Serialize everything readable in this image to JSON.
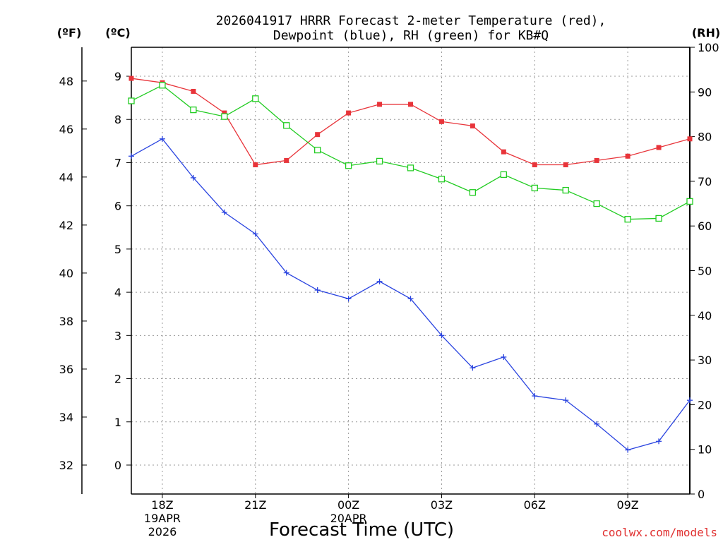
{
  "chart_data": {
    "type": "line",
    "title_line1": "2026041917 HRRR Forecast 2-meter Temperature (red),",
    "title_line2": "Dewpoint (blue), RH (green) for KB#Q",
    "xlabel": "Forecast Time (UTC)",
    "watermark": "coolwx.com/models",
    "units": {
      "fahrenheit": "(ºF)",
      "celsius": "(ºC)",
      "rh": "(RH)"
    },
    "x_hours": [
      0,
      1,
      2,
      3,
      4,
      5,
      6,
      7,
      8,
      9,
      10,
      11,
      12,
      13,
      14,
      15,
      16,
      17,
      18
    ],
    "x_ticks": [
      {
        "hour": 1,
        "lines": [
          "18Z",
          "19APR",
          "2026"
        ]
      },
      {
        "hour": 4,
        "lines": [
          "21Z"
        ]
      },
      {
        "hour": 7,
        "lines": [
          "00Z",
          "20APR"
        ]
      },
      {
        "hour": 10,
        "lines": [
          "03Z"
        ]
      },
      {
        "hour": 13,
        "lines": [
          "06Z"
        ]
      },
      {
        "hour": 16,
        "lines": [
          "09Z"
        ]
      }
    ],
    "y_celsius": {
      "range": [
        -0.67,
        9.67
      ],
      "ticks": [
        0,
        1,
        2,
        3,
        4,
        5,
        6,
        7,
        8,
        9
      ]
    },
    "y_fahrenheit": {
      "ticks": [
        32,
        34,
        36,
        38,
        40,
        42,
        44,
        46,
        48
      ]
    },
    "y_rh": {
      "range": [
        0,
        100
      ],
      "ticks": [
        0,
        10,
        20,
        30,
        40,
        50,
        60,
        70,
        80,
        90,
        100
      ]
    },
    "series": [
      {
        "name": "Temperature",
        "axis": "celsius",
        "color": "#e8343a",
        "marker": "filled-square",
        "values": [
          8.95,
          8.85,
          8.65,
          8.15,
          6.95,
          7.05,
          7.65,
          8.15,
          8.35,
          8.35,
          7.95,
          7.85,
          7.25,
          6.95,
          6.95,
          7.05,
          7.15,
          7.35,
          7.55
        ]
      },
      {
        "name": "Dewpoint",
        "axis": "celsius",
        "color": "#2a44e0",
        "marker": "plus",
        "values": [
          7.15,
          7.55,
          6.65,
          5.85,
          5.35,
          4.45,
          4.05,
          3.85,
          4.25,
          3.85,
          3.0,
          2.25,
          2.5,
          1.6,
          1.5,
          0.95,
          0.35,
          0.55,
          1.5
        ]
      },
      {
        "name": "RH",
        "axis": "rh",
        "color": "#22cc22",
        "marker": "open-square",
        "values": [
          88,
          91.5,
          86,
          84.5,
          88.5,
          82.5,
          77,
          73.5,
          74.5,
          73,
          70.5,
          67.5,
          71.5,
          68.5,
          68,
          65,
          61.5,
          61.7,
          65.5
        ]
      }
    ]
  }
}
